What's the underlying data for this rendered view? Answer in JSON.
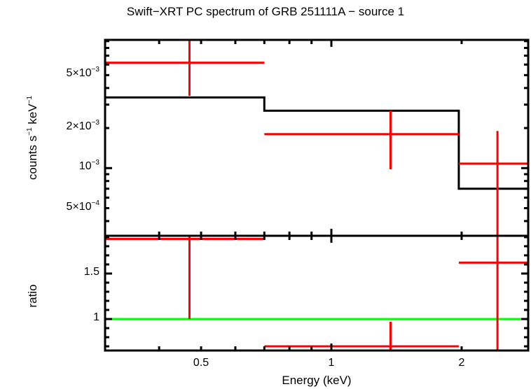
{
  "chart_data": [
    {
      "panel": "spectrum",
      "type": "scatter",
      "title": "Swift−XRT PC spectrum of GRB 251111A − source 1",
      "xlabel": "Energy (keV)",
      "ylabel": "counts s⁻¹ keV⁻¹",
      "xscale": "log",
      "yscale": "log",
      "xlim": [
        0.3,
        2.85
      ],
      "ylim": [
        0.00031,
        0.0092
      ],
      "yticks": [
        {
          "value": 0.0005,
          "label_mant": "5×10",
          "label_exp": "−4"
        },
        {
          "value": 0.001,
          "label_mant": "10",
          "label_exp": "−3"
        },
        {
          "value": 0.002,
          "label_mant": "2×10",
          "label_exp": "−3"
        },
        {
          "value": 0.005,
          "label_mant": "5×10",
          "label_exp": "−3"
        }
      ],
      "series": [
        {
          "name": "data",
          "color": "#ff0000",
          "points": [
            {
              "x": 0.47,
              "xlo": 0.3,
              "xhi": 0.7,
              "y": 0.0062,
              "ylo": 0.0035,
              "yhi": 0.0092
            },
            {
              "x": 1.37,
              "xlo": 0.7,
              "xhi": 1.97,
              "y": 0.0018,
              "ylo": 0.00098,
              "yhi": 0.0027
            },
            {
              "x": 2.42,
              "xlo": 1.97,
              "xhi": 2.85,
              "y": 0.00108,
              "ylo": 0.00031,
              "yhi": 0.0019
            }
          ]
        },
        {
          "name": "model",
          "color": "#000000",
          "steps": [
            {
              "xlo": 0.3,
              "xhi": 0.7,
              "y": 0.0034
            },
            {
              "xlo": 0.7,
              "xhi": 1.97,
              "y": 0.0027
            },
            {
              "xlo": 1.97,
              "xhi": 2.85,
              "y": 0.0007
            }
          ]
        }
      ]
    },
    {
      "panel": "ratio",
      "type": "scatter",
      "xlabel": "Energy (keV)",
      "ylabel": "ratio",
      "xscale": "log",
      "yscale": "linear",
      "xlim": [
        0.3,
        2.85
      ],
      "ylim": [
        0.654,
        1.915
      ],
      "xticks": [
        {
          "value": 0.5,
          "label": "0.5"
        },
        {
          "value": 1,
          "label": "1"
        },
        {
          "value": 2,
          "label": "2"
        }
      ],
      "yticks": [
        {
          "value": 1,
          "label": "1"
        },
        {
          "value": 1.5,
          "label": "1.5"
        }
      ],
      "reference_line": {
        "y": 1,
        "color": "#00ff00"
      },
      "series": [
        {
          "name": "ratio",
          "color": "#ff0000",
          "points": [
            {
              "x": 0.47,
              "xlo": 0.3,
              "xhi": 0.7,
              "y": 1.88,
              "ylo": 1.0,
              "yhi": 1.915
            },
            {
              "x": 1.37,
              "xlo": 0.7,
              "xhi": 1.97,
              "y": 0.7,
              "ylo": 0.654,
              "yhi": 0.97
            },
            {
              "x": 2.42,
              "xlo": 1.97,
              "xhi": 2.85,
              "y": 1.62,
              "ylo": 0.654,
              "yhi": 1.915
            }
          ]
        }
      ]
    }
  ],
  "labels": {
    "title": "Swift−XRT PC spectrum of GRB 251111A − source 1",
    "xlabel": "Energy (keV)",
    "ylabel_top_a": "counts s",
    "ylabel_top_exp1": "−1",
    "ylabel_top_b": " keV",
    "ylabel_top_exp2": "−1",
    "ylabel_bottom": "ratio"
  },
  "colors": {
    "data": "#ff0000",
    "model": "#000000",
    "reference": "#00ff00",
    "axes": "#000000"
  }
}
